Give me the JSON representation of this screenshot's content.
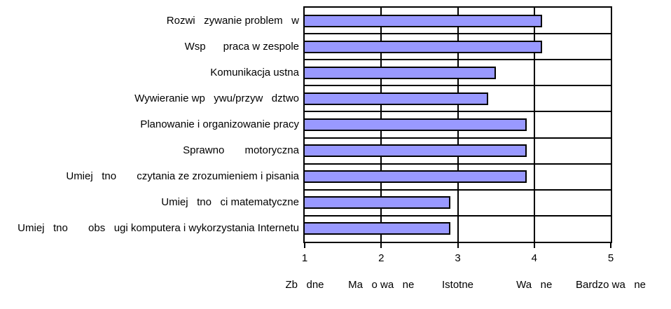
{
  "chart_data": {
    "type": "bar",
    "orientation": "horizontal",
    "title": "",
    "xlabel": "",
    "ylabel": "",
    "xlim": [
      1,
      5
    ],
    "grid": true,
    "legend": false,
    "categories": [
      "Rozwi   zywanie problem   w",
      "Wsp      praca w zespole",
      "Komunikacja ustna",
      "Wywieranie wp   ywu/przyw   dztwo",
      "Planowanie i organizowanie pracy",
      "Sprawno       motoryczna",
      "Umiej   tno       czytania ze zrozumieniem i pisania",
      "Umiej   tno   ci matematyczne",
      "Umiej   tno       obs   ugi komputera i wykorzystania Internetu"
    ],
    "values": [
      4.1,
      4.1,
      3.5,
      3.4,
      3.9,
      3.9,
      3.9,
      2.9,
      2.9
    ],
    "x_ticks": [
      1,
      2,
      3,
      4,
      5
    ],
    "x_tick_labels": [
      "1",
      "2",
      "3",
      "4",
      "5"
    ],
    "x_tick_words": [
      "Zb   dne",
      "Ma   o wa   ne",
      "Istotne",
      "Wa   ne",
      "Bardzo wa   ne"
    ],
    "bar_color": "#9999FF",
    "bar_border_color": "#000000",
    "grid_color": "#000000"
  }
}
